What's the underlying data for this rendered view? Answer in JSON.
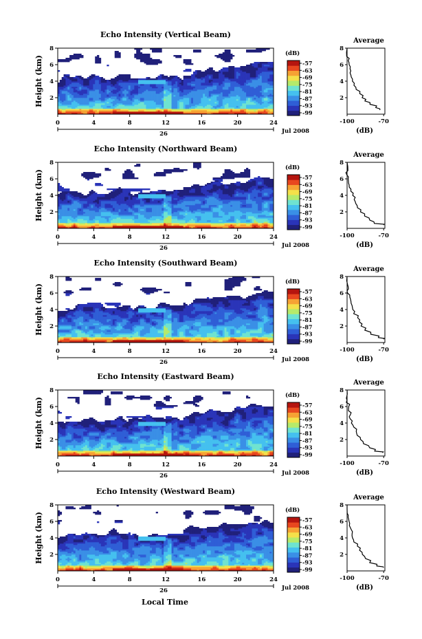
{
  "colors": {
    "scale": [
      "#20207a",
      "#2a34b8",
      "#2f5ed6",
      "#3a8fe6",
      "#45c0ef",
      "#6fe3d0",
      "#b6ea6a",
      "#f4e04a",
      "#f6a234",
      "#e8471f",
      "#b5150f"
    ],
    "missing": "#ffffff"
  },
  "labels": {
    "y_axis": "Height (km)",
    "x_axis": "Local Time",
    "date_day": "26",
    "date_month": "Jul 2008",
    "colorbar_unit": "(dB)",
    "avg_title": "Average",
    "avg_xlabel": "(dB)"
  },
  "chart_data": [
    {
      "type": "heatmap",
      "title": "Echo Intensity (Vertical Beam)",
      "xlim": [
        0,
        24
      ],
      "x_ticks": [
        0,
        4,
        8,
        12,
        16,
        20,
        24
      ],
      "ylim": [
        0,
        8
      ],
      "y_ticks": [
        2,
        4,
        6,
        8
      ],
      "colorbar_ticks": [
        -57,
        -63,
        -69,
        -75,
        -81,
        -87,
        -93,
        -99
      ],
      "average_profile": {
        "title": "Average",
        "xlabel": "(dB)",
        "x_ticks": [
          -100,
          -70
        ],
        "y_ticks": [
          2,
          4,
          6,
          8
        ],
        "points": [
          [
            -73,
            0.5
          ],
          [
            -76,
            0.8
          ],
          [
            -81,
            1.2
          ],
          [
            -85,
            1.6
          ],
          [
            -88,
            2.0
          ],
          [
            -90,
            2.5
          ],
          [
            -92,
            3.0
          ],
          [
            -94,
            3.5
          ],
          [
            -95,
            4.0
          ],
          [
            -96,
            4.5
          ],
          [
            -97,
            5.0
          ],
          [
            -98,
            5.5
          ],
          [
            -98,
            6.0
          ],
          [
            -99,
            6.5
          ],
          [
            -100,
            7.0
          ],
          [
            -100,
            8.0
          ]
        ]
      }
    },
    {
      "type": "heatmap",
      "title": "Echo Intensity (Northward Beam)",
      "xlim": [
        0,
        24
      ],
      "x_ticks": [
        0,
        4,
        8,
        12,
        16,
        20,
        24
      ],
      "ylim": [
        0,
        8
      ],
      "y_ticks": [
        2,
        4,
        6,
        8
      ],
      "colorbar_ticks": [
        -57,
        -63,
        -69,
        -75,
        -81,
        -87,
        -93,
        -99
      ],
      "average_profile": {
        "title": "Average",
        "xlabel": "(dB)",
        "x_ticks": [
          -100,
          -70
        ],
        "y_ticks": [
          2,
          4,
          6,
          8
        ],
        "points": [
          [
            -70,
            0.4
          ],
          [
            -78,
            0.6
          ],
          [
            -82,
            1.0
          ],
          [
            -86,
            1.5
          ],
          [
            -89,
            2.0
          ],
          [
            -91,
            2.5
          ],
          [
            -93,
            3.0
          ],
          [
            -94,
            3.5
          ],
          [
            -96,
            4.0
          ],
          [
            -97,
            4.5
          ],
          [
            -98,
            5.0
          ],
          [
            -99,
            5.5
          ],
          [
            -99,
            6.0
          ],
          [
            -100,
            6.5
          ],
          [
            -100,
            7.0
          ],
          [
            -100,
            8.0
          ]
        ]
      }
    },
    {
      "type": "heatmap",
      "title": "Echo Intensity (Southward Beam)",
      "xlim": [
        0,
        24
      ],
      "x_ticks": [
        0,
        4,
        8,
        12,
        16,
        20,
        24
      ],
      "ylim": [
        0,
        8
      ],
      "y_ticks": [
        2,
        4,
        6,
        8
      ],
      "colorbar_ticks": [
        -57,
        -63,
        -69,
        -75,
        -81,
        -87,
        -93,
        -99
      ],
      "average_profile": {
        "title": "Average",
        "xlabel": "(dB)",
        "x_ticks": [
          -100,
          -70
        ],
        "y_ticks": [
          2,
          4,
          6,
          8
        ],
        "points": [
          [
            -70,
            0.4
          ],
          [
            -75,
            0.6
          ],
          [
            -80,
            1.0
          ],
          [
            -85,
            1.5
          ],
          [
            -88,
            2.0
          ],
          [
            -90,
            2.5
          ],
          [
            -92,
            3.0
          ],
          [
            -94,
            3.5
          ],
          [
            -95,
            4.0
          ],
          [
            -96,
            4.5
          ],
          [
            -97,
            5.0
          ],
          [
            -98,
            5.5
          ],
          [
            -99,
            6.0
          ],
          [
            -99,
            6.5
          ],
          [
            -100,
            7.0
          ],
          [
            -100,
            8.0
          ]
        ]
      }
    },
    {
      "type": "heatmap",
      "title": "Echo Intensity (Eastward Beam)",
      "xlim": [
        0,
        24
      ],
      "x_ticks": [
        0,
        4,
        8,
        12,
        16,
        20,
        24
      ],
      "ylim": [
        0,
        8
      ],
      "y_ticks": [
        2,
        4,
        6,
        8
      ],
      "colorbar_ticks": [
        -57,
        -63,
        -69,
        -75,
        -81,
        -87,
        -93,
        -99
      ],
      "average_profile": {
        "title": "Average",
        "xlabel": "(dB)",
        "x_ticks": [
          -100,
          -70
        ],
        "y_ticks": [
          2,
          4,
          6,
          8
        ],
        "points": [
          [
            -71,
            0.4
          ],
          [
            -77,
            0.6
          ],
          [
            -82,
            1.0
          ],
          [
            -86,
            1.5
          ],
          [
            -89,
            2.0
          ],
          [
            -91,
            2.5
          ],
          [
            -93,
            3.0
          ],
          [
            -95,
            3.5
          ],
          [
            -96,
            4.0
          ],
          [
            -97,
            4.5
          ],
          [
            -98,
            5.0
          ],
          [
            -99,
            5.5
          ],
          [
            -99,
            6.0
          ],
          [
            -100,
            6.5
          ],
          [
            -100,
            7.0
          ],
          [
            -100,
            8.0
          ]
        ]
      }
    },
    {
      "type": "heatmap",
      "title": "Echo Intensity (Westward Beam)",
      "xlim": [
        0,
        24
      ],
      "x_ticks": [
        0,
        4,
        8,
        12,
        16,
        20,
        24
      ],
      "ylim": [
        0,
        8
      ],
      "y_ticks": [
        2,
        4,
        6,
        8
      ],
      "colorbar_ticks": [
        -57,
        -63,
        -69,
        -75,
        -81,
        -87,
        -93,
        -99
      ],
      "average_profile": {
        "title": "Average",
        "xlabel": "(dB)",
        "x_ticks": [
          -100,
          -70
        ],
        "y_ticks": [
          2,
          4,
          6,
          8
        ],
        "points": [
          [
            -70,
            0.4
          ],
          [
            -76,
            0.6
          ],
          [
            -81,
            1.0
          ],
          [
            -85,
            1.5
          ],
          [
            -88,
            2.0
          ],
          [
            -90,
            2.5
          ],
          [
            -92,
            3.0
          ],
          [
            -94,
            3.5
          ],
          [
            -95,
            4.0
          ],
          [
            -96,
            4.5
          ],
          [
            -97,
            5.0
          ],
          [
            -98,
            5.5
          ],
          [
            -99,
            6.0
          ],
          [
            -99,
            6.5
          ],
          [
            -100,
            7.0
          ],
          [
            -100,
            8.0
          ]
        ]
      }
    }
  ]
}
